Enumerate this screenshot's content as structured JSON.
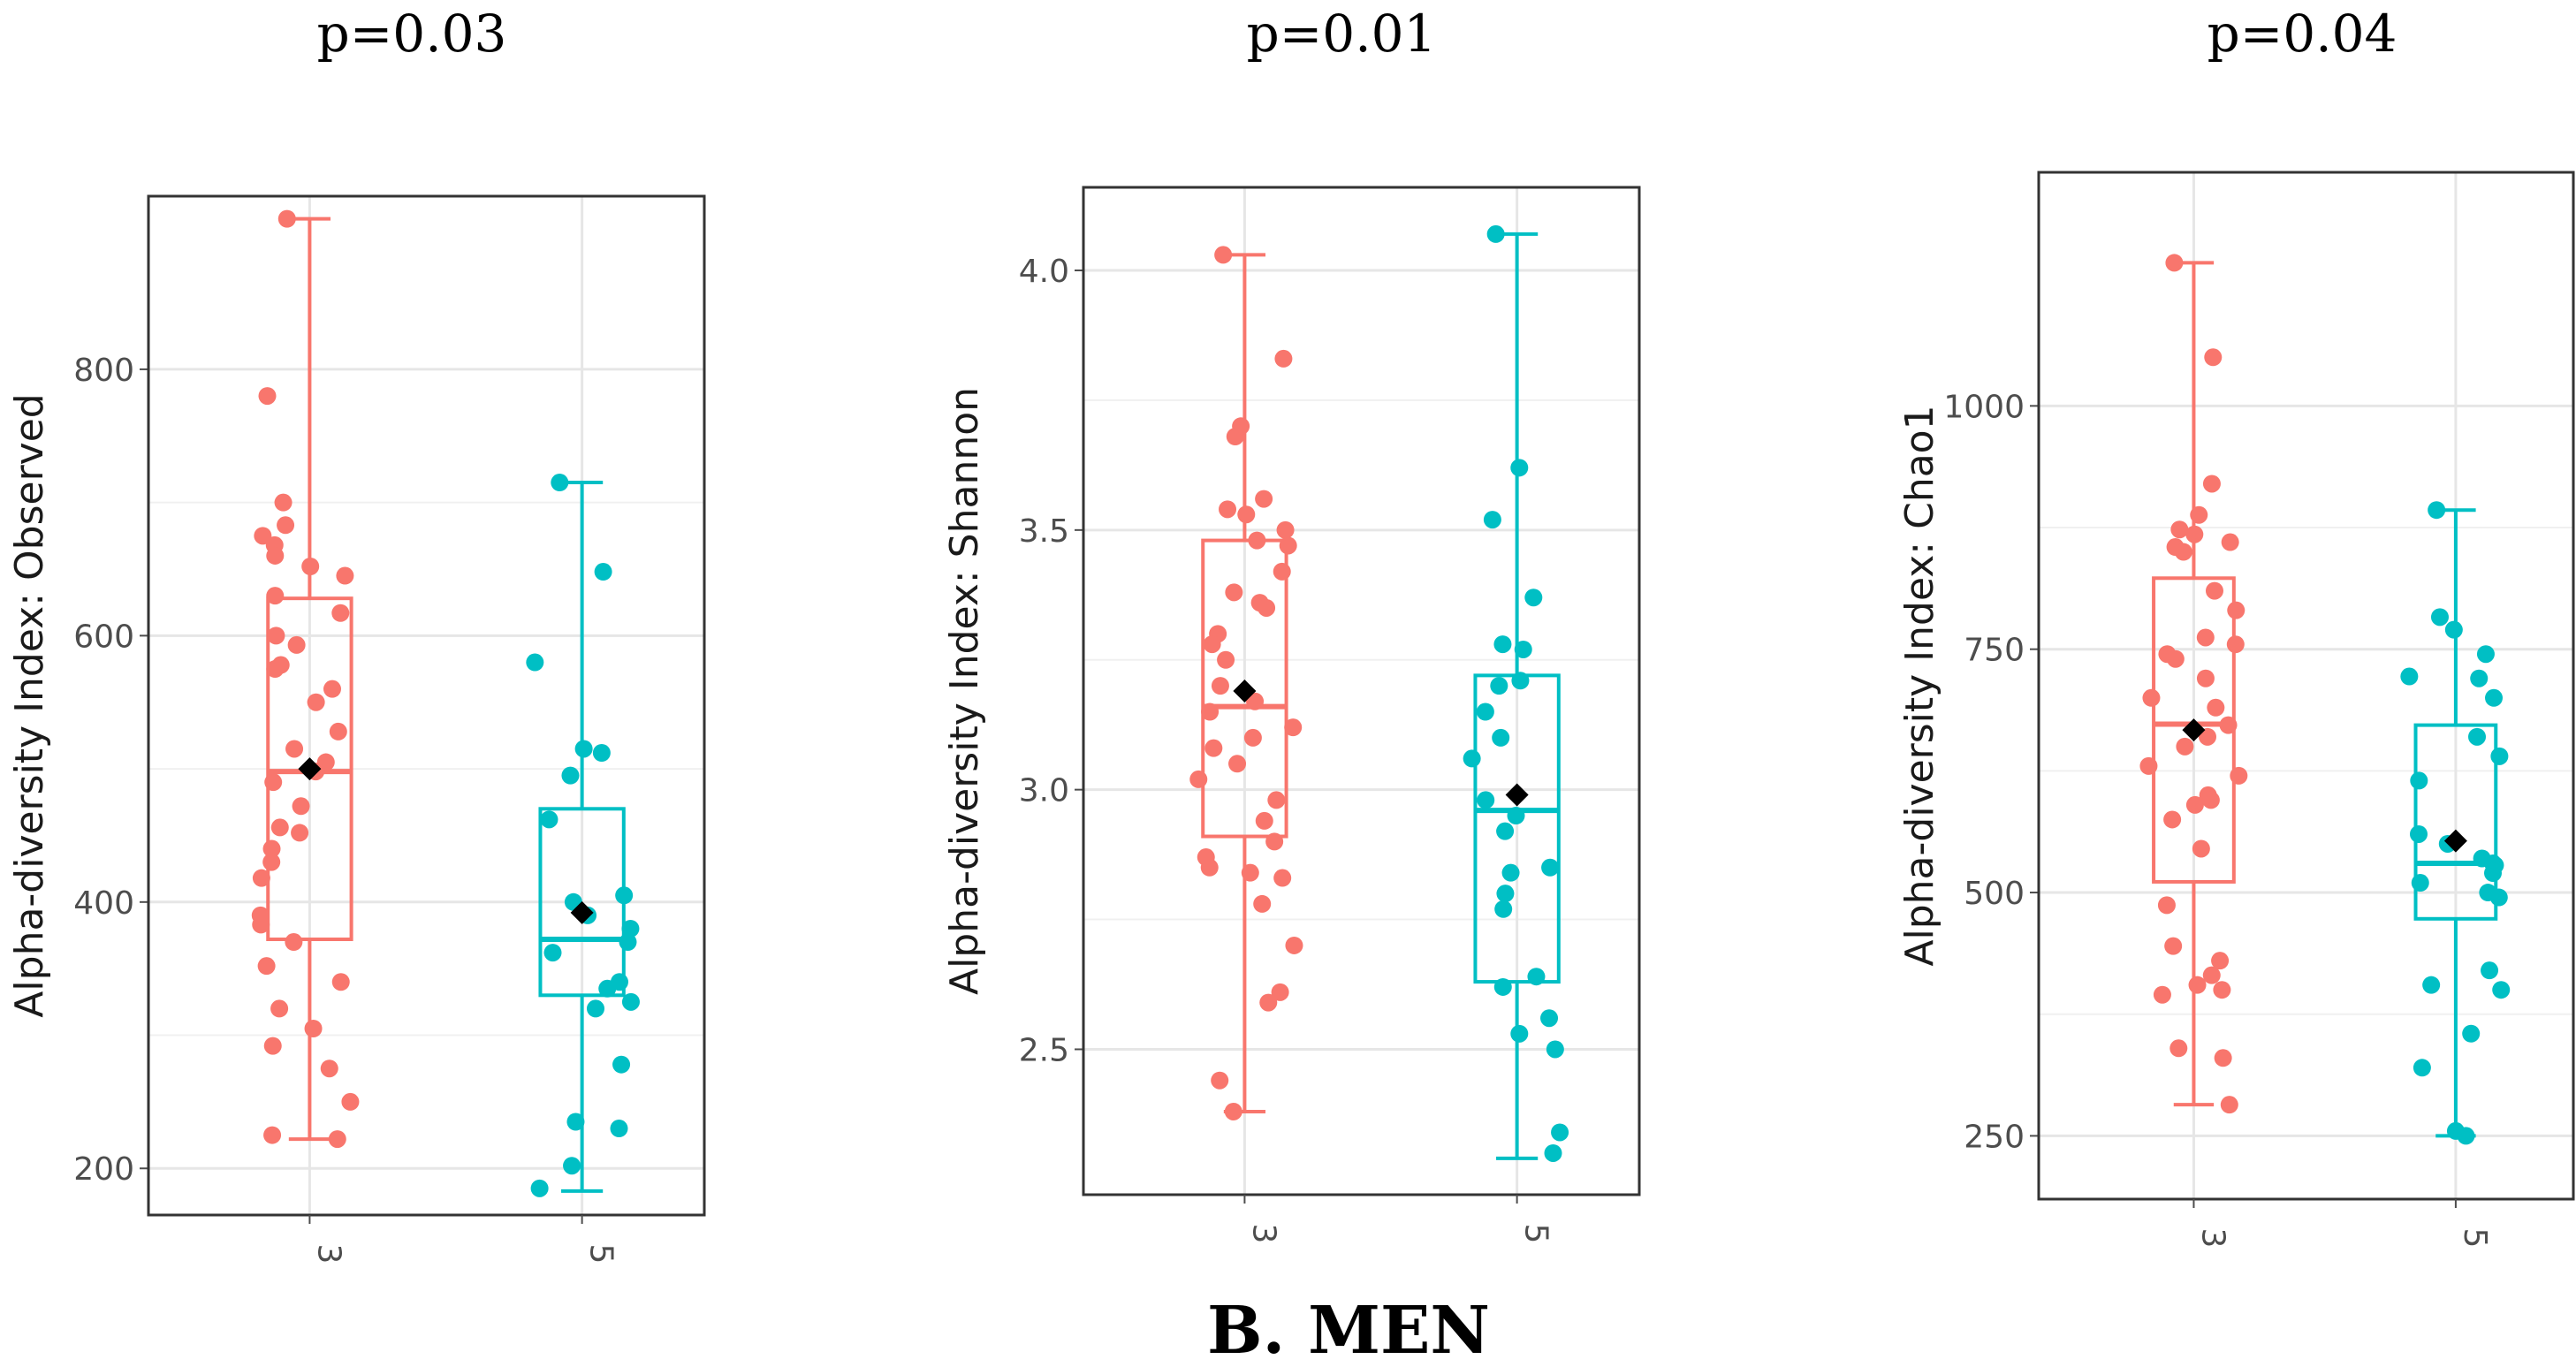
{
  "caption": "B.    MEN",
  "group_colors": {
    "3": "#F8766D",
    "5": "#00BFC4"
  },
  "mean_marker_color": "#000000",
  "chart_data": [
    {
      "type": "boxplot",
      "title": "p=0.03",
      "xlabel": "",
      "ylabel": "Alpha-diversity Index: Observed",
      "categories": [
        "3",
        "5"
      ],
      "ylim": [
        165,
        930
      ],
      "yticks": [
        200,
        400,
        600,
        800
      ],
      "ytick_labels": [
        "200",
        "400",
        "600",
        "800"
      ],
      "grid": true,
      "boxes": [
        {
          "group": "3",
          "min": 222,
          "q1": 372,
          "median": 498,
          "q3": 628,
          "max": 913,
          "mean": 500,
          "points": [
            913,
            780,
            700,
            683,
            675,
            668,
            660,
            652,
            645,
            630,
            617,
            600,
            593,
            578,
            575,
            560,
            550,
            528,
            515,
            505,
            498,
            490,
            472,
            456,
            452,
            440,
            430,
            418,
            390,
            383,
            370,
            352,
            340,
            320,
            305,
            292,
            275,
            250,
            225,
            222
          ]
        },
        {
          "group": "5",
          "min": 183,
          "q1": 330,
          "median": 372,
          "q3": 470,
          "max": 715,
          "mean": 392,
          "points": [
            715,
            648,
            580,
            515,
            512,
            495,
            462,
            405,
            400,
            390,
            380,
            370,
            362,
            340,
            335,
            325,
            320,
            278,
            235,
            230,
            202,
            185
          ]
        }
      ]
    },
    {
      "type": "boxplot",
      "title": "p=0.01",
      "xlabel": "",
      "ylabel": "Alpha-diversity Index: Shannon",
      "categories": [
        "3",
        "5"
      ],
      "ylim": [
        2.22,
        4.16
      ],
      "yticks": [
        2.5,
        3.0,
        3.5,
        4.0
      ],
      "ytick_labels": [
        "2.5",
        "3.0",
        "3.5",
        "4.0"
      ],
      "grid": true,
      "boxes": [
        {
          "group": "3",
          "min": 2.38,
          "q1": 2.91,
          "median": 3.16,
          "q3": 3.48,
          "max": 4.03,
          "mean": 3.19,
          "points": [
            4.03,
            3.83,
            3.7,
            3.68,
            3.56,
            3.54,
            3.53,
            3.5,
            3.48,
            3.47,
            3.42,
            3.38,
            3.36,
            3.35,
            3.3,
            3.28,
            3.25,
            3.2,
            3.17,
            3.15,
            3.12,
            3.1,
            3.08,
            3.05,
            3.02,
            2.98,
            2.94,
            2.9,
            2.87,
            2.85,
            2.84,
            2.83,
            2.78,
            2.7,
            2.61,
            2.59,
            2.44,
            2.38
          ]
        },
        {
          "group": "5",
          "min": 2.29,
          "q1": 2.63,
          "median": 2.96,
          "q3": 3.22,
          "max": 4.07,
          "mean": 2.99,
          "points": [
            4.07,
            3.62,
            3.52,
            3.37,
            3.28,
            3.27,
            3.21,
            3.2,
            3.15,
            3.1,
            3.06,
            2.98,
            2.95,
            2.92,
            2.85,
            2.84,
            2.8,
            2.77,
            2.64,
            2.62,
            2.56,
            2.53,
            2.5,
            2.34,
            2.3
          ]
        }
      ]
    },
    {
      "type": "boxplot",
      "title": "p=0.04",
      "xlabel": "",
      "ylabel": "Alpha-diversity Index: Chao1",
      "categories": [
        "3",
        "5"
      ],
      "ylim": [
        185,
        1240
      ],
      "yticks": [
        250,
        500,
        750,
        1000
      ],
      "ytick_labels": [
        "250",
        "500",
        "750",
        "1000"
      ],
      "grid": true,
      "boxes": [
        {
          "group": "3",
          "min": 282,
          "q1": 511,
          "median": 673,
          "q3": 823,
          "max": 1147,
          "mean": 667,
          "points": [
            1147,
            1050,
            920,
            888,
            873,
            868,
            860,
            855,
            850,
            810,
            790,
            762,
            755,
            745,
            740,
            720,
            700,
            690,
            672,
            660,
            650,
            630,
            620,
            600,
            595,
            590,
            575,
            545,
            487,
            445,
            430,
            415,
            405,
            400,
            395,
            340,
            330,
            282
          ]
        },
        {
          "group": "5",
          "min": 250,
          "q1": 473,
          "median": 530,
          "q3": 672,
          "max": 893,
          "mean": 553,
          "points": [
            893,
            783,
            770,
            745,
            722,
            720,
            700,
            660,
            640,
            615,
            560,
            550,
            535,
            530,
            528,
            520,
            510,
            500,
            495,
            420,
            405,
            400,
            355,
            320,
            255,
            250
          ]
        }
      ]
    }
  ]
}
